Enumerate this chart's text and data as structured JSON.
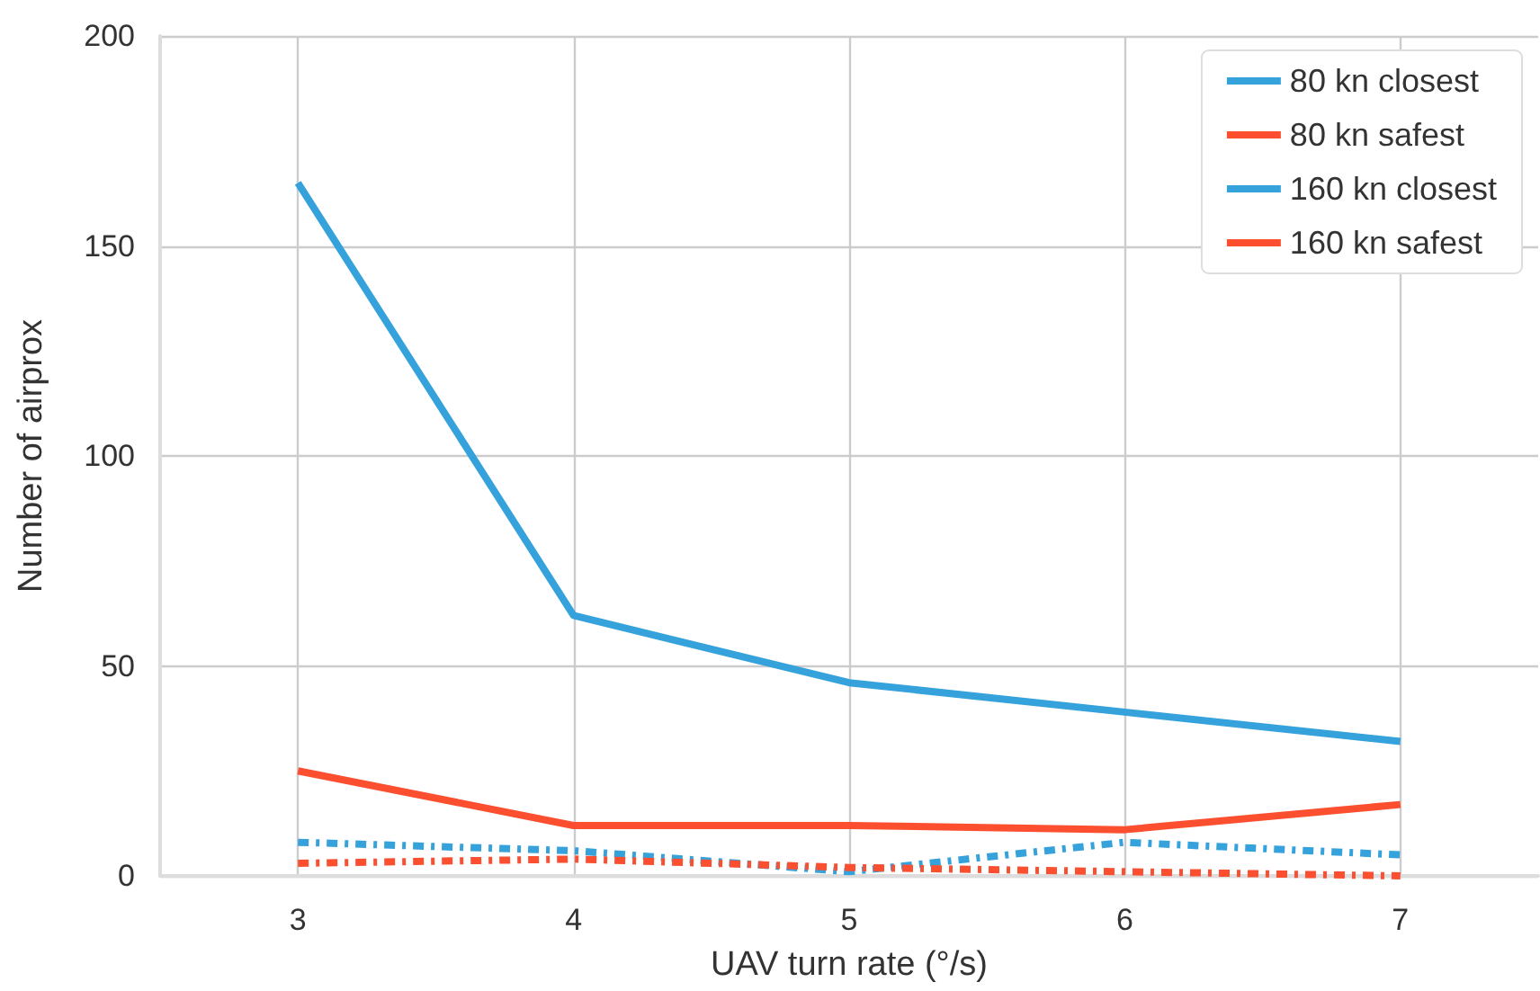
{
  "chart_data": {
    "type": "line",
    "xlabel": "UAV turn rate (°/s)",
    "ylabel": "Number of airprox",
    "x": [
      3,
      4,
      5,
      6,
      7
    ],
    "series": [
      {
        "name": "80 kn closest",
        "color": "#35a2dc",
        "values": [
          165,
          62,
          46,
          39,
          32
        ],
        "line_style": "solid"
      },
      {
        "name": "80 kn safest",
        "color": "#fc4f30",
        "values": [
          25,
          12,
          12,
          11,
          17
        ],
        "line_style": "solid"
      },
      {
        "name": "160 kn closest",
        "color": "#35a2dc",
        "values": [
          8,
          6,
          1,
          8,
          5
        ],
        "line_style": "dashed"
      },
      {
        "name": "160 kn safest",
        "color": "#fc4f30",
        "values": [
          3,
          4,
          2,
          1,
          0
        ],
        "line_style": "dashed"
      }
    ],
    "xlim": [
      2.5,
      7.5
    ],
    "xticks": [
      3,
      4,
      5,
      6,
      7
    ],
    "ylim": [
      0,
      200
    ],
    "yticks": [
      0,
      50,
      100,
      150,
      200
    ],
    "grid": true,
    "legend": "top right",
    "marker": "none"
  }
}
